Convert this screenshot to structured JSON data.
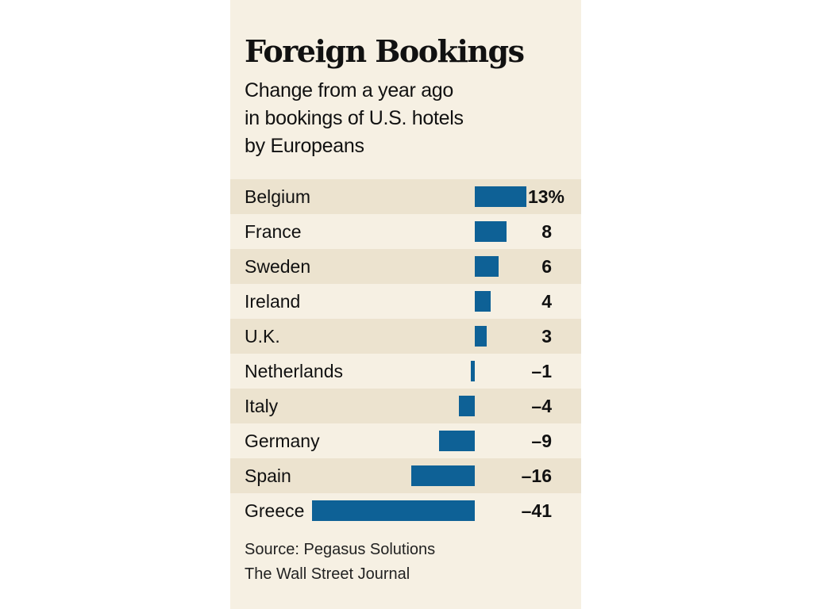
{
  "title": "Foreign Bookings",
  "subtitle_lines": [
    "Change from a year ago",
    "in bookings of U.S. hotels",
    "by Europeans"
  ],
  "source_lines": [
    "Source: Pegasus Solutions",
    "The Wall Street Journal"
  ],
  "colors": {
    "panel_background": "#f6f0e3",
    "stripe": "#ece3cf",
    "bar": "#0e6196"
  },
  "chart_data": {
    "type": "bar",
    "orientation": "horizontal",
    "categories": [
      "Belgium",
      "France",
      "Sweden",
      "Ireland",
      "U.K.",
      "Netherlands",
      "Italy",
      "Germany",
      "Spain",
      "Greece"
    ],
    "values": [
      13,
      8,
      6,
      4,
      3,
      -1,
      -4,
      -9,
      -16,
      -41
    ],
    "value_labels": [
      "13%",
      "8",
      "6",
      "4",
      "3",
      "–1",
      "–4",
      "–9",
      "–16",
      "–41"
    ],
    "unit": "%"
  }
}
